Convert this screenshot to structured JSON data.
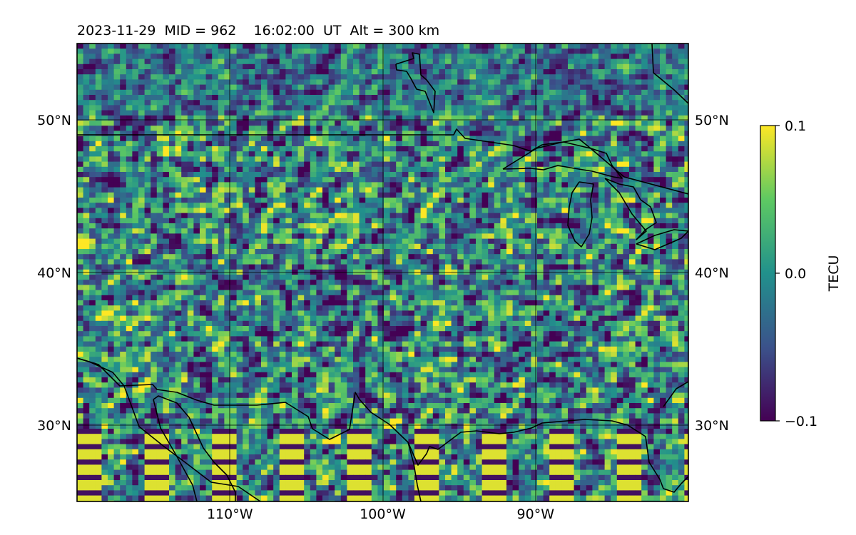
{
  "title": "2023-11-29  MID = 962    16:02:00  UT  Alt = 300 km",
  "map": {
    "lon_range": [
      -120,
      -80
    ],
    "lat_range": [
      25,
      55
    ],
    "lon_ticks": [
      {
        "value": -110,
        "label": "110°W"
      },
      {
        "value": -100,
        "label": "100°W"
      },
      {
        "value": -90,
        "label": "90°W"
      }
    ],
    "lat_ticks": [
      {
        "value": 50,
        "label": "50°N"
      },
      {
        "value": 40,
        "label": "40°N"
      },
      {
        "value": 30,
        "label": "30°N"
      }
    ],
    "gridlines": true,
    "coastlines": true
  },
  "colorbar": {
    "label": "TECU",
    "colormap": "viridis",
    "vmin": -0.1,
    "vmax": 0.1,
    "ticks": [
      {
        "value": 0.1,
        "label": "0.1"
      },
      {
        "value": 0.0,
        "label": "0.0"
      },
      {
        "value": -0.1,
        "label": "−0.1"
      }
    ],
    "colors": [
      "#440154",
      "#3b528b",
      "#21918c",
      "#5ec962",
      "#fde725"
    ]
  }
}
